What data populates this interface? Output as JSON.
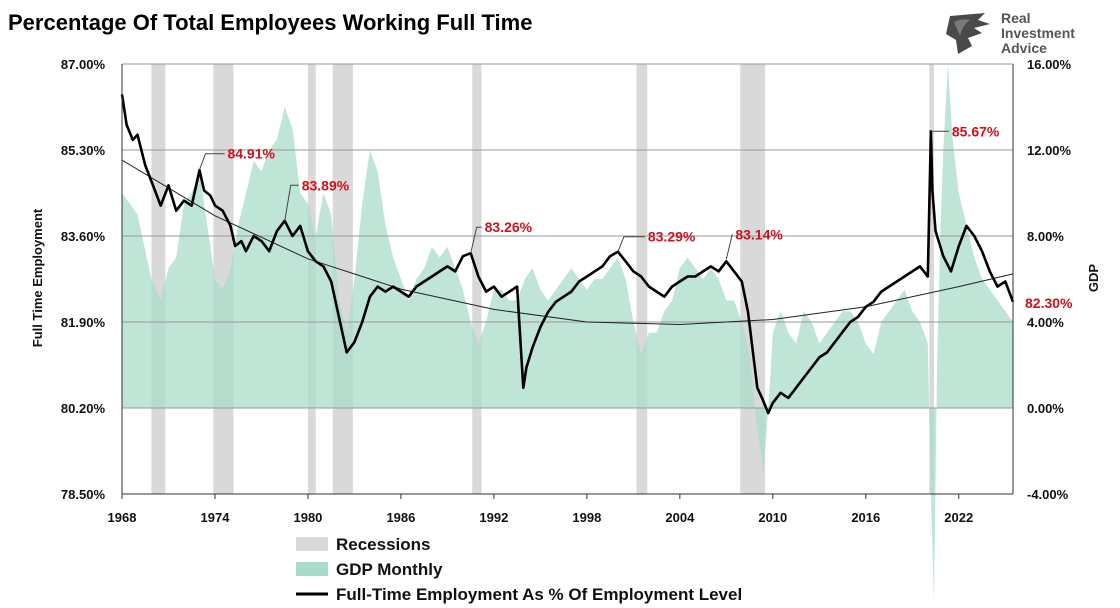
{
  "chart_data": {
    "type": "line",
    "title": "Percentage Of Total Employees Working Full Time",
    "ylabel_left": "Full Time Employment",
    "ylabel_right": "GDP",
    "xlim": [
      1968,
      2025.5
    ],
    "ylim_left": [
      78.5,
      87.0
    ],
    "ylim_right": [
      -4.0,
      16.0
    ],
    "grid": true,
    "legend_position": "bottom-center",
    "x_ticks": [
      "1968",
      "1974",
      "1980",
      "1986",
      "1992",
      "1998",
      "2004",
      "2010",
      "2016",
      "2022"
    ],
    "x_tick_values": [
      1968,
      1974,
      1980,
      1986,
      1992,
      1998,
      2004,
      2010,
      2016,
      2022
    ],
    "y_ticks_left": [
      "87.00%",
      "85.30%",
      "83.60%",
      "81.90%",
      "80.20%",
      "78.50%"
    ],
    "y_tick_values_left": [
      87.0,
      85.3,
      83.6,
      81.9,
      80.2,
      78.5
    ],
    "y_ticks_right": [
      "16.00%",
      "12.00%",
      "8.00%",
      "4.00%",
      "0.00%",
      "-4.00%"
    ],
    "y_tick_values_right": [
      16,
      12,
      8,
      4,
      0,
      -4
    ],
    "recessions": [
      [
        1969.9,
        1970.8
      ],
      [
        1973.9,
        1975.2
      ],
      [
        1980.0,
        1980.5
      ],
      [
        1981.6,
        1982.9
      ],
      [
        1990.6,
        1991.2
      ],
      [
        2001.2,
        2001.9
      ],
      [
        2007.9,
        2009.5
      ],
      [
        2020.1,
        2020.4
      ]
    ],
    "series": [
      {
        "name": "Full-Time Employment As % Of Employment Level",
        "axis": "left",
        "color": "#000000",
        "x": [
          1968.0,
          1968.3,
          1968.7,
          1969.0,
          1969.5,
          1970.0,
          1970.5,
          1971.0,
          1971.5,
          1972.0,
          1972.5,
          1973.0,
          1973.3,
          1973.7,
          1974.0,
          1974.5,
          1975.0,
          1975.3,
          1975.7,
          1976.0,
          1976.5,
          1977.0,
          1977.5,
          1978.0,
          1978.5,
          1979.0,
          1979.5,
          1980.0,
          1980.5,
          1981.0,
          1981.5,
          1982.0,
          1982.5,
          1983.0,
          1983.5,
          1984.0,
          1984.5,
          1985.0,
          1985.5,
          1986.0,
          1986.5,
          1987.0,
          1987.5,
          1988.0,
          1988.5,
          1989.0,
          1989.5,
          1990.0,
          1990.5,
          1991.0,
          1991.5,
          1992.0,
          1992.5,
          1993.0,
          1993.5,
          1993.9,
          1994.1,
          1994.5,
          1995.0,
          1995.5,
          1996.0,
          1996.5,
          1997.0,
          1997.5,
          1998.0,
          1998.5,
          1999.0,
          1999.5,
          2000.0,
          2000.5,
          2001.0,
          2001.5,
          2002.0,
          2002.5,
          2003.0,
          2003.5,
          2004.0,
          2004.5,
          2005.0,
          2005.5,
          2006.0,
          2006.5,
          2007.0,
          2007.5,
          2008.0,
          2008.4,
          2008.8,
          2009.0,
          2009.3,
          2009.7,
          2010.0,
          2010.5,
          2011.0,
          2011.5,
          2012.0,
          2012.5,
          2013.0,
          2013.5,
          2014.0,
          2014.5,
          2015.0,
          2015.5,
          2016.0,
          2016.5,
          2017.0,
          2017.5,
          2018.0,
          2018.5,
          2019.0,
          2019.5,
          2020.0,
          2020.2,
          2020.3,
          2020.5,
          2020.8,
          2021.0,
          2021.5,
          2022.0,
          2022.5,
          2023.0,
          2023.5,
          2024.0,
          2024.5,
          2025.0,
          2025.5
        ],
        "y": [
          86.4,
          85.8,
          85.5,
          85.6,
          85.0,
          84.6,
          84.2,
          84.6,
          84.1,
          84.3,
          84.2,
          84.9,
          84.5,
          84.4,
          84.2,
          84.1,
          83.8,
          83.4,
          83.5,
          83.3,
          83.6,
          83.5,
          83.3,
          83.7,
          83.9,
          83.6,
          83.8,
          83.3,
          83.1,
          83.0,
          82.7,
          82.0,
          81.3,
          81.5,
          81.9,
          82.4,
          82.6,
          82.5,
          82.6,
          82.5,
          82.4,
          82.6,
          82.7,
          82.8,
          82.9,
          83.0,
          82.9,
          83.2,
          83.26,
          82.8,
          82.5,
          82.6,
          82.4,
          82.5,
          82.6,
          80.6,
          81.0,
          81.4,
          81.8,
          82.1,
          82.3,
          82.4,
          82.5,
          82.7,
          82.8,
          82.9,
          83.0,
          83.2,
          83.29,
          83.1,
          82.9,
          82.8,
          82.6,
          82.5,
          82.4,
          82.6,
          82.7,
          82.8,
          82.8,
          82.9,
          83.0,
          82.9,
          83.1,
          82.9,
          82.7,
          82.1,
          81.1,
          80.6,
          80.4,
          80.1,
          80.3,
          80.5,
          80.4,
          80.6,
          80.8,
          81.0,
          81.2,
          81.3,
          81.5,
          81.7,
          81.9,
          82.0,
          82.2,
          82.3,
          82.5,
          82.6,
          82.7,
          82.8,
          82.9,
          83.0,
          82.8,
          85.67,
          84.5,
          83.7,
          83.4,
          83.2,
          82.9,
          83.4,
          83.8,
          83.6,
          83.3,
          82.9,
          82.6,
          82.7,
          82.3
        ]
      },
      {
        "name": "GDP Monthly",
        "axis": "right",
        "color": "#a8dcc8",
        "x": [
          1968.0,
          1969.0,
          1969.9,
          1970.5,
          1971.0,
          1971.5,
          1972.0,
          1972.5,
          1973.0,
          1973.5,
          1974.0,
          1974.5,
          1975.0,
          1975.5,
          1976.0,
          1976.5,
          1977.0,
          1977.5,
          1978.0,
          1978.5,
          1979.0,
          1979.5,
          1980.0,
          1980.5,
          1981.0,
          1981.5,
          1982.0,
          1982.5,
          1983.0,
          1983.5,
          1984.0,
          1984.5,
          1985.0,
          1985.5,
          1986.0,
          1986.5,
          1987.0,
          1987.5,
          1988.0,
          1988.5,
          1989.0,
          1989.5,
          1990.0,
          1990.5,
          1991.0,
          1991.5,
          1992.0,
          1992.5,
          1993.0,
          1993.5,
          1994.0,
          1994.5,
          1995.0,
          1995.5,
          1996.0,
          1996.5,
          1997.0,
          1997.5,
          1998.0,
          1998.5,
          1999.0,
          1999.5,
          2000.0,
          2000.5,
          2001.0,
          2001.5,
          2002.0,
          2002.5,
          2003.0,
          2003.5,
          2004.0,
          2004.5,
          2005.0,
          2005.5,
          2006.0,
          2006.5,
          2007.0,
          2007.5,
          2008.0,
          2008.5,
          2009.0,
          2009.4,
          2009.8,
          2010.0,
          2010.5,
          2011.0,
          2011.5,
          2012.0,
          2012.5,
          2013.0,
          2013.5,
          2014.0,
          2014.5,
          2015.0,
          2015.5,
          2016.0,
          2016.5,
          2017.0,
          2017.5,
          2018.0,
          2018.5,
          2019.0,
          2019.5,
          2020.0,
          2020.2,
          2020.4,
          2020.6,
          2020.8,
          2021.0,
          2021.3,
          2021.6,
          2022.0,
          2022.5,
          2023.0,
          2023.5,
          2024.0,
          2024.5,
          2025.0,
          2025.5
        ],
        "y": [
          10.0,
          9.0,
          6.0,
          5.0,
          6.5,
          7.0,
          9.5,
          10.0,
          11.0,
          8.5,
          6.0,
          5.5,
          6.5,
          8.5,
          10.0,
          11.5,
          11.0,
          12.0,
          12.5,
          14.0,
          13.0,
          10.0,
          9.5,
          8.0,
          10.0,
          9.0,
          5.0,
          3.5,
          6.0,
          9.5,
          12.0,
          11.0,
          8.5,
          7.0,
          6.0,
          5.0,
          6.0,
          6.5,
          7.5,
          7.0,
          7.5,
          6.5,
          5.5,
          4.0,
          3.0,
          4.0,
          5.5,
          5.5,
          5.0,
          5.0,
          6.0,
          6.5,
          5.5,
          5.0,
          5.5,
          6.0,
          6.5,
          6.0,
          5.5,
          6.0,
          6.0,
          6.5,
          7.0,
          6.0,
          4.0,
          2.5,
          3.5,
          3.5,
          4.5,
          5.0,
          6.5,
          7.0,
          6.5,
          6.0,
          6.5,
          6.0,
          5.0,
          5.0,
          4.0,
          2.5,
          -1.0,
          -3.0,
          1.0,
          3.5,
          4.5,
          3.5,
          3.0,
          4.5,
          4.0,
          3.0,
          3.5,
          4.0,
          4.5,
          4.5,
          4.0,
          3.0,
          2.5,
          4.0,
          4.5,
          5.0,
          5.5,
          4.5,
          4.0,
          3.0,
          -4.0,
          -9.0,
          2.0,
          8.0,
          12.0,
          16.0,
          12.5,
          10.0,
          8.5,
          7.0,
          6.0,
          5.5,
          5.0,
          4.5,
          4.0
        ]
      },
      {
        "name": "Recessions",
        "color": "#d9d9d9"
      }
    ],
    "trend": {
      "axis": "left",
      "x": [
        1968,
        1974,
        1980,
        1986,
        1992,
        1998,
        2004,
        2010,
        2016,
        2022,
        2025.5
      ],
      "y": [
        85.1,
        84.0,
        83.15,
        82.55,
        82.15,
        81.9,
        81.85,
        81.95,
        82.2,
        82.6,
        82.85
      ]
    },
    "annotations": [
      {
        "label": "84.91%",
        "x": 1973.0,
        "y": 84.91
      },
      {
        "label": "83.89%",
        "x": 1978.5,
        "y": 83.89
      },
      {
        "label": "83.26%",
        "x": 1990.5,
        "y": 83.26
      },
      {
        "label": "83.29%",
        "x": 2000.0,
        "y": 83.29
      },
      {
        "label": "83.14%",
        "x": 2007.0,
        "y": 83.14
      },
      {
        "label": "85.67%",
        "x": 2020.2,
        "y": 85.67
      },
      {
        "label": "82.30%",
        "x": 2025.5,
        "y": 82.3
      }
    ],
    "legend": [
      "Recessions",
      "GDP Monthly",
      "Full-Time Employment As % Of Employment Level"
    ]
  },
  "logo": {
    "line1": "Real",
    "line2": "Investment",
    "line3": "Advice",
    "icon": "eagle-icon"
  }
}
